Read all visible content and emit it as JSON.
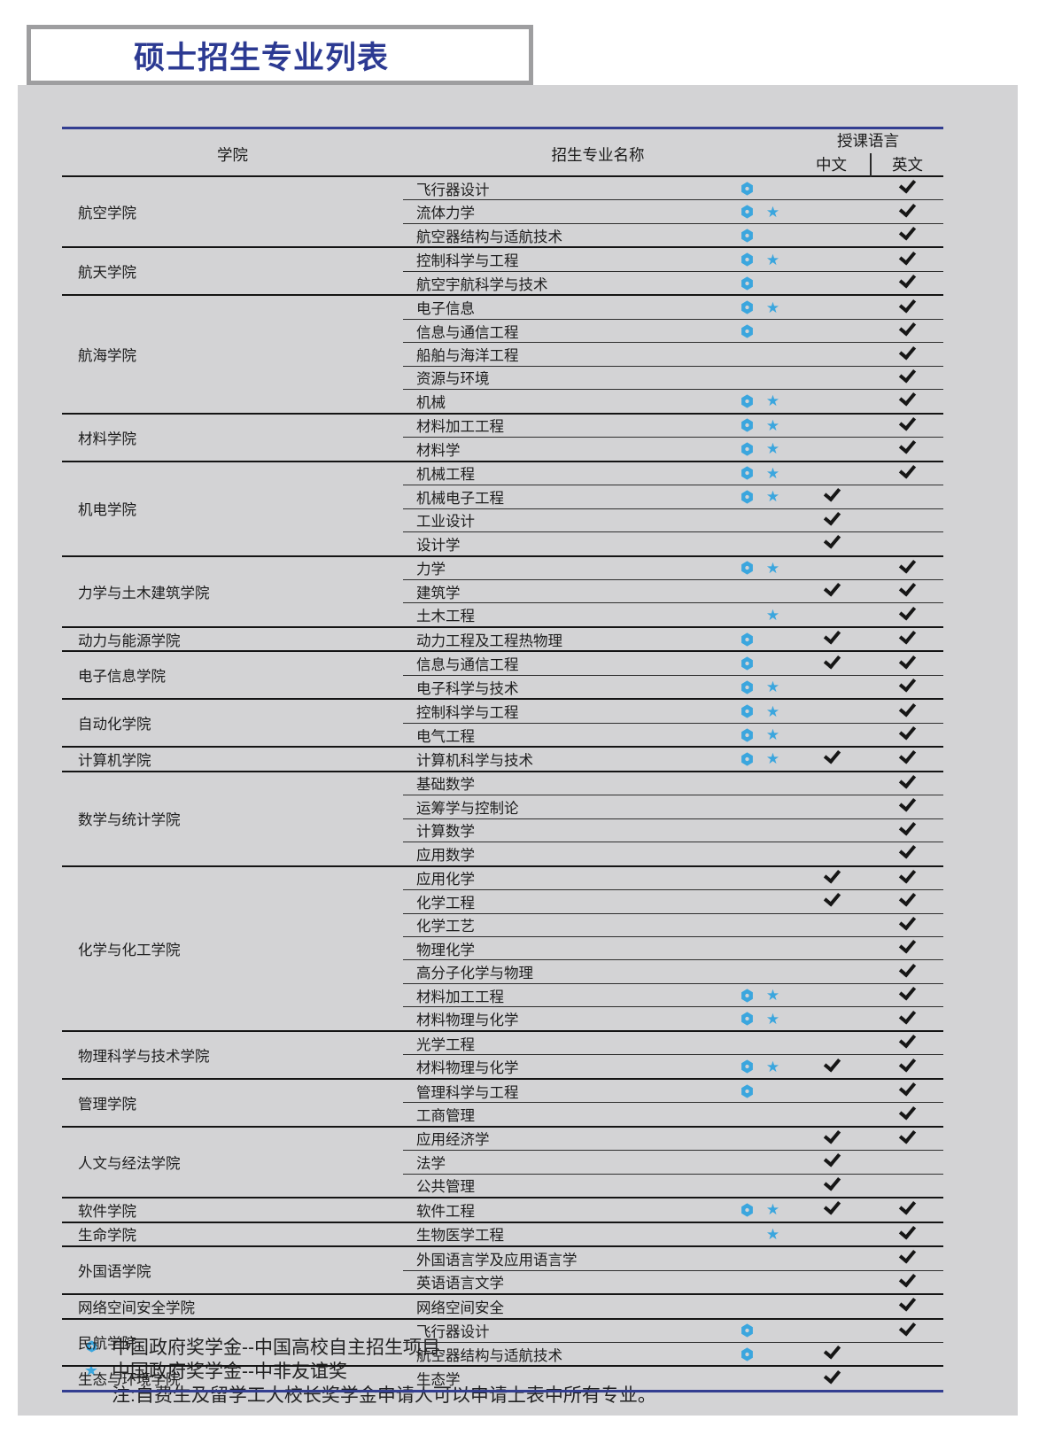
{
  "page": {
    "title": "硕士招生专业列表"
  },
  "table": {
    "headers": {
      "college": "学院",
      "program": "招生专业名称",
      "language_group": "授课语言",
      "chinese": "中文",
      "english": "英文"
    },
    "colleges": [
      {
        "name": "航空学院",
        "programs": [
          {
            "name": "飞行器设计",
            "hex": true,
            "star": false,
            "cn": false,
            "en": true
          },
          {
            "name": "流体力学",
            "hex": true,
            "star": true,
            "cn": false,
            "en": true
          },
          {
            "name": "航空器结构与适航技术",
            "hex": true,
            "star": false,
            "cn": false,
            "en": true
          }
        ]
      },
      {
        "name": "航天学院",
        "programs": [
          {
            "name": "控制科学与工程",
            "hex": true,
            "star": true,
            "cn": false,
            "en": true
          },
          {
            "name": "航空宇航科学与技术",
            "hex": true,
            "star": false,
            "cn": false,
            "en": true
          }
        ]
      },
      {
        "name": "航海学院",
        "programs": [
          {
            "name": "电子信息",
            "hex": true,
            "star": true,
            "cn": false,
            "en": true
          },
          {
            "name": "信息与通信工程",
            "hex": true,
            "star": false,
            "cn": false,
            "en": true
          },
          {
            "name": "船舶与海洋工程",
            "hex": false,
            "star": false,
            "cn": false,
            "en": true
          },
          {
            "name": "资源与环境",
            "hex": false,
            "star": false,
            "cn": false,
            "en": true
          },
          {
            "name": "机械",
            "hex": true,
            "star": true,
            "cn": false,
            "en": true
          }
        ]
      },
      {
        "name": "材料学院",
        "programs": [
          {
            "name": "材料加工工程",
            "hex": true,
            "star": true,
            "cn": false,
            "en": true
          },
          {
            "name": "材料学",
            "hex": true,
            "star": true,
            "cn": false,
            "en": true
          }
        ]
      },
      {
        "name": "机电学院",
        "programs": [
          {
            "name": "机械工程",
            "hex": true,
            "star": true,
            "cn": false,
            "en": true
          },
          {
            "name": "机械电子工程",
            "hex": true,
            "star": true,
            "cn": true,
            "en": false
          },
          {
            "name": "工业设计",
            "hex": false,
            "star": false,
            "cn": true,
            "en": false
          },
          {
            "name": "设计学",
            "hex": false,
            "star": false,
            "cn": true,
            "en": false
          }
        ]
      },
      {
        "name": "力学与土木建筑学院",
        "programs": [
          {
            "name": "力学",
            "hex": true,
            "star": true,
            "cn": false,
            "en": true
          },
          {
            "name": "建筑学",
            "hex": false,
            "star": false,
            "cn": true,
            "en": true
          },
          {
            "name": "土木工程",
            "hex": false,
            "star": true,
            "cn": false,
            "en": true
          }
        ]
      },
      {
        "name": "动力与能源学院",
        "programs": [
          {
            "name": "动力工程及工程热物理",
            "hex": true,
            "star": false,
            "cn": true,
            "en": true
          }
        ]
      },
      {
        "name": "电子信息学院",
        "programs": [
          {
            "name": "信息与通信工程",
            "hex": true,
            "star": false,
            "cn": true,
            "en": true
          },
          {
            "name": "电子科学与技术",
            "hex": true,
            "star": true,
            "cn": false,
            "en": true
          }
        ]
      },
      {
        "name": "自动化学院",
        "programs": [
          {
            "name": "控制科学与工程",
            "hex": true,
            "star": true,
            "cn": false,
            "en": true
          },
          {
            "name": "电气工程",
            "hex": true,
            "star": true,
            "cn": false,
            "en": true
          }
        ]
      },
      {
        "name": "计算机学院",
        "programs": [
          {
            "name": "计算机科学与技术",
            "hex": true,
            "star": true,
            "cn": true,
            "en": true
          }
        ]
      },
      {
        "name": "数学与统计学院",
        "programs": [
          {
            "name": "基础数学",
            "hex": false,
            "star": false,
            "cn": false,
            "en": true
          },
          {
            "name": "运筹学与控制论",
            "hex": false,
            "star": false,
            "cn": false,
            "en": true
          },
          {
            "name": "计算数学",
            "hex": false,
            "star": false,
            "cn": false,
            "en": true
          },
          {
            "name": "应用数学",
            "hex": false,
            "star": false,
            "cn": false,
            "en": true
          }
        ]
      },
      {
        "name": "化学与化工学院",
        "programs": [
          {
            "name": "应用化学",
            "hex": false,
            "star": false,
            "cn": true,
            "en": true
          },
          {
            "name": "化学工程",
            "hex": false,
            "star": false,
            "cn": true,
            "en": true
          },
          {
            "name": "化学工艺",
            "hex": false,
            "star": false,
            "cn": false,
            "en": true
          },
          {
            "name": "物理化学",
            "hex": false,
            "star": false,
            "cn": false,
            "en": true
          },
          {
            "name": "高分子化学与物理",
            "hex": false,
            "star": false,
            "cn": false,
            "en": true
          },
          {
            "name": "材料加工工程",
            "hex": true,
            "star": true,
            "cn": false,
            "en": true
          },
          {
            "name": "材料物理与化学",
            "hex": true,
            "star": true,
            "cn": false,
            "en": true
          }
        ]
      },
      {
        "name": "物理科学与技术学院",
        "programs": [
          {
            "name": "光学工程",
            "hex": false,
            "star": false,
            "cn": false,
            "en": true
          },
          {
            "name": "材料物理与化学",
            "hex": true,
            "star": true,
            "cn": true,
            "en": true
          }
        ]
      },
      {
        "name": "管理学院",
        "programs": [
          {
            "name": "管理科学与工程",
            "hex": true,
            "star": false,
            "cn": false,
            "en": true
          },
          {
            "name": "工商管理",
            "hex": false,
            "star": false,
            "cn": false,
            "en": true
          }
        ]
      },
      {
        "name": "人文与经法学院",
        "programs": [
          {
            "name": "应用经济学",
            "hex": false,
            "star": false,
            "cn": true,
            "en": true
          },
          {
            "name": "法学",
            "hex": false,
            "star": false,
            "cn": true,
            "en": false
          },
          {
            "name": "公共管理",
            "hex": false,
            "star": false,
            "cn": true,
            "en": false
          }
        ]
      },
      {
        "name": "软件学院",
        "programs": [
          {
            "name": "软件工程",
            "hex": true,
            "star": true,
            "cn": true,
            "en": true
          }
        ]
      },
      {
        "name": "生命学院",
        "programs": [
          {
            "name": "生物医学工程",
            "hex": false,
            "star": true,
            "cn": false,
            "en": true
          }
        ]
      },
      {
        "name": "外国语学院",
        "programs": [
          {
            "name": "外国语言学及应用语言学",
            "hex": false,
            "star": false,
            "cn": false,
            "en": true
          },
          {
            "name": "英语语言文学",
            "hex": false,
            "star": false,
            "cn": false,
            "en": true
          }
        ]
      },
      {
        "name": "网络空间安全学院",
        "programs": [
          {
            "name": "网络空间安全",
            "hex": false,
            "star": false,
            "cn": false,
            "en": true
          }
        ]
      },
      {
        "name": "民航学院",
        "programs": [
          {
            "name": "飞行器设计",
            "hex": true,
            "star": false,
            "cn": false,
            "en": true
          },
          {
            "name": "航空器结构与适航技术",
            "hex": true,
            "star": false,
            "cn": true,
            "en": false
          }
        ]
      },
      {
        "name": "生态与环境学院",
        "programs": [
          {
            "name": "生态学",
            "hex": false,
            "star": false,
            "cn": true,
            "en": false
          }
        ]
      }
    ]
  },
  "legend": {
    "hex_label": "中国政府奖学金--中国高校自主招生项目",
    "star_label": "中国政府奖学金--中非友谊奖",
    "note": "注:自费生及留学工大校长奖学金申请人可以申请上表中所有专业。"
  },
  "colors": {
    "accent_blue": "#2c3a92",
    "icon_blue": "#3ba6de",
    "panel_gray": "#d3d3d5",
    "check_black": "#161616"
  }
}
